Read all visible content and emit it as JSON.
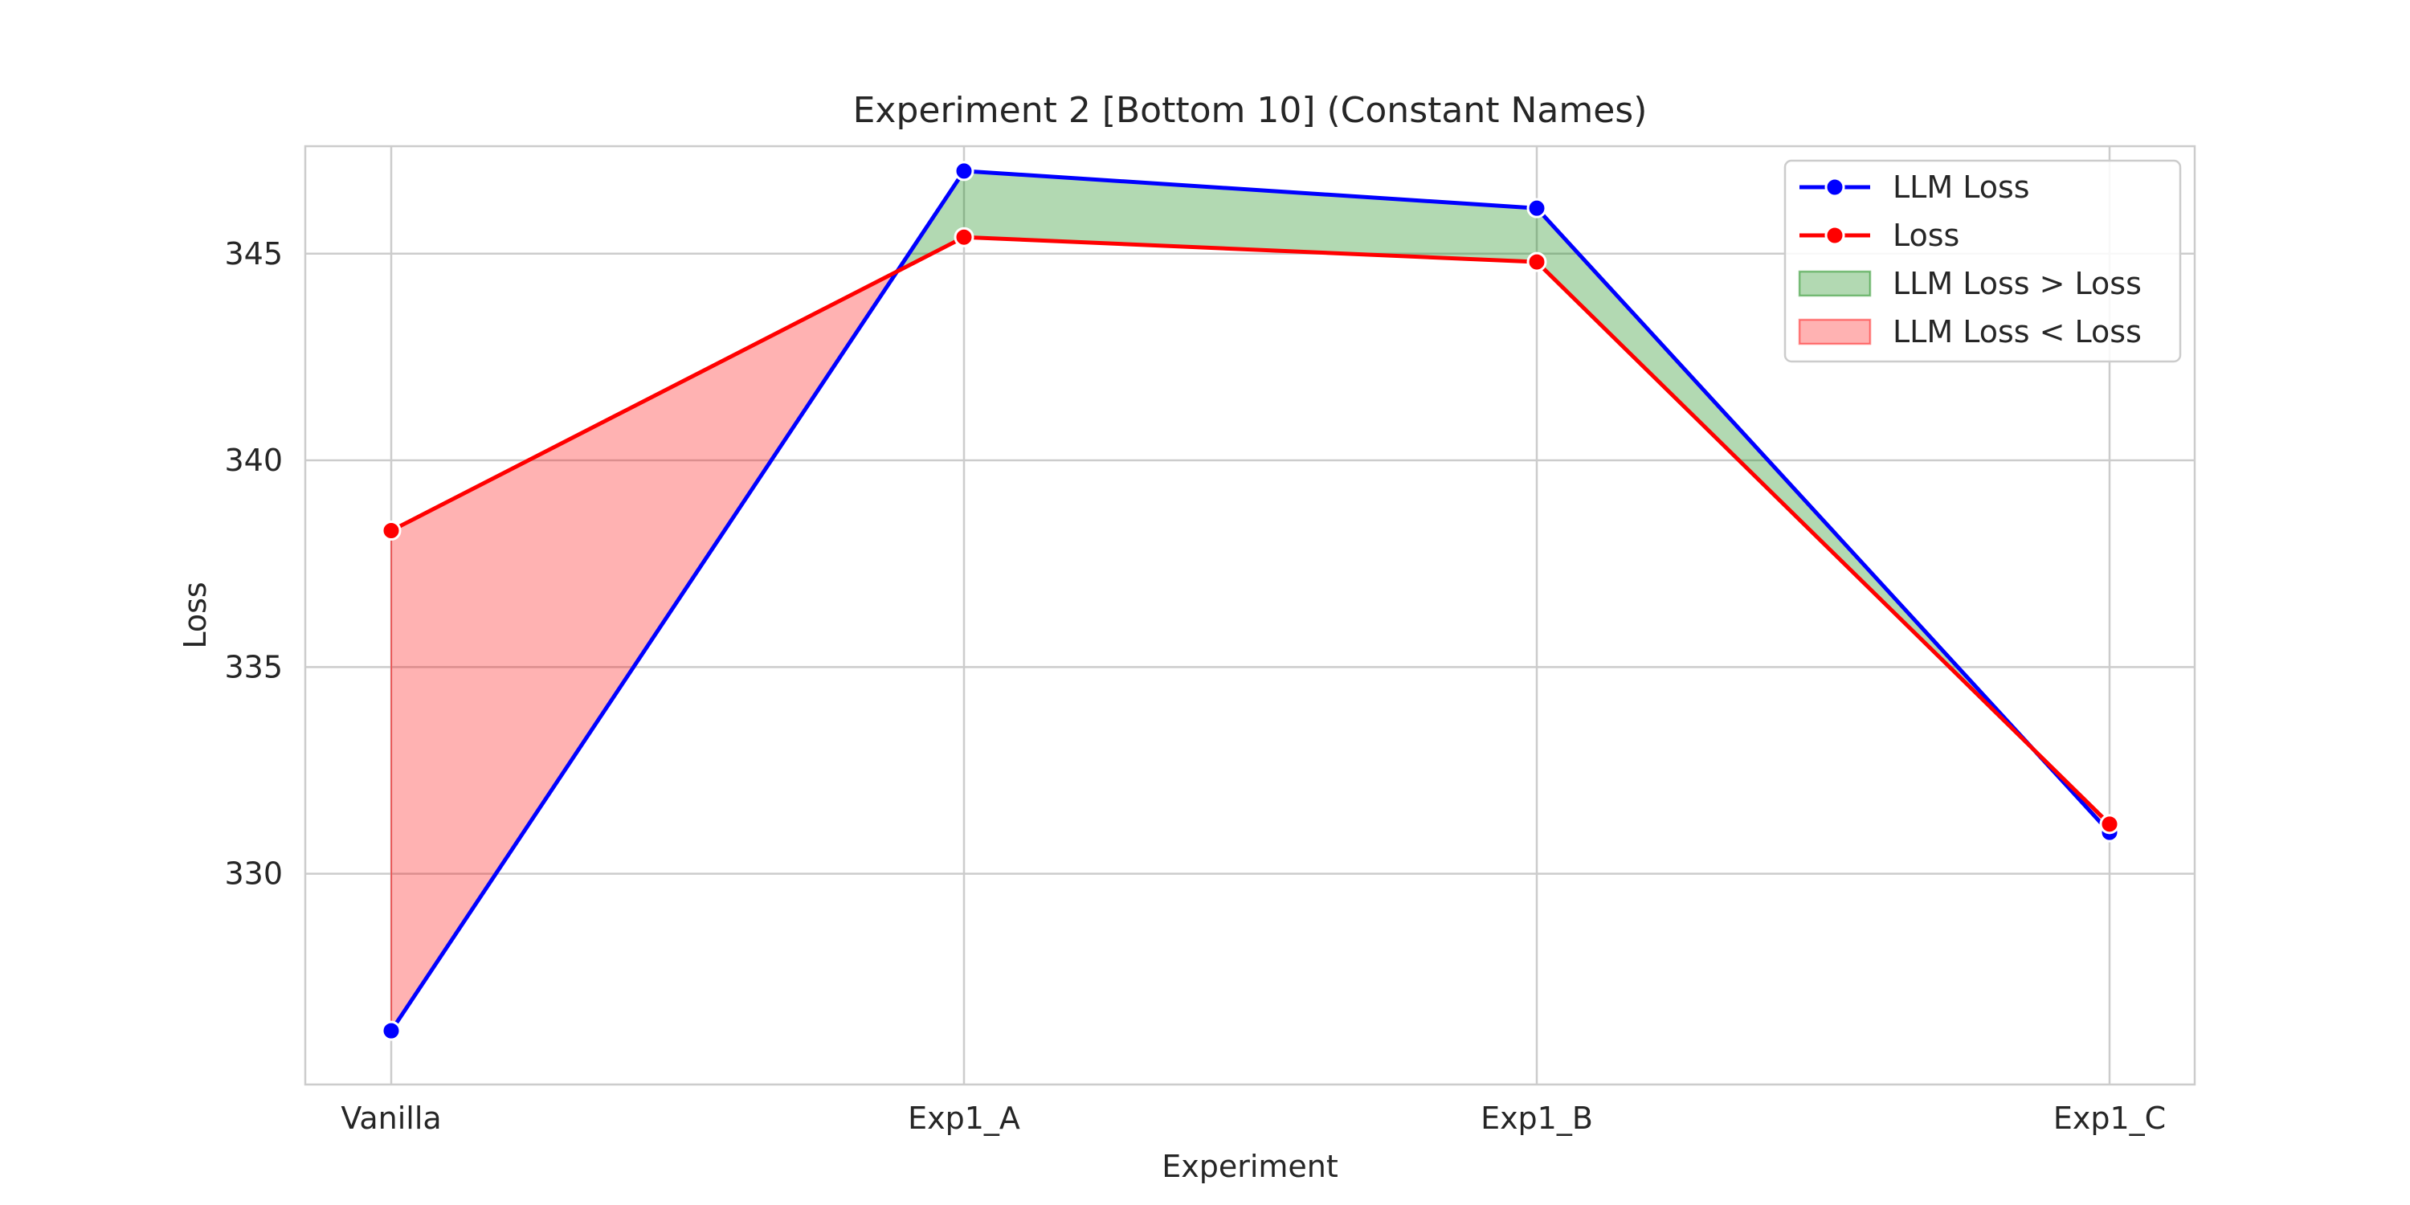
{
  "chart_data": {
    "type": "line",
    "title": "Experiment 2 [Bottom 10] (Constant Names)",
    "xlabel": "Experiment",
    "ylabel": "Loss",
    "categories": [
      "Vanilla",
      "Exp1_A",
      "Exp1_B",
      "Exp1_C"
    ],
    "ylim": [
      324.9,
      347.6
    ],
    "yticks": [
      330,
      335,
      340,
      345
    ],
    "grid": true,
    "legend_position": "upper-right",
    "series": [
      {
        "name": "LLM Loss",
        "values": [
          326.2,
          347.0,
          346.1,
          331.0
        ],
        "color": "#0000ff"
      },
      {
        "name": "Loss",
        "values": [
          338.3,
          345.4,
          344.8,
          331.2
        ],
        "color": "#ff0000"
      }
    ],
    "fills": [
      {
        "name": "LLM Loss > Loss",
        "color": "#008000",
        "opacity": 0.3
      },
      {
        "name": "LLM Loss < Loss",
        "color": "#ff0000",
        "opacity": 0.3
      }
    ]
  }
}
